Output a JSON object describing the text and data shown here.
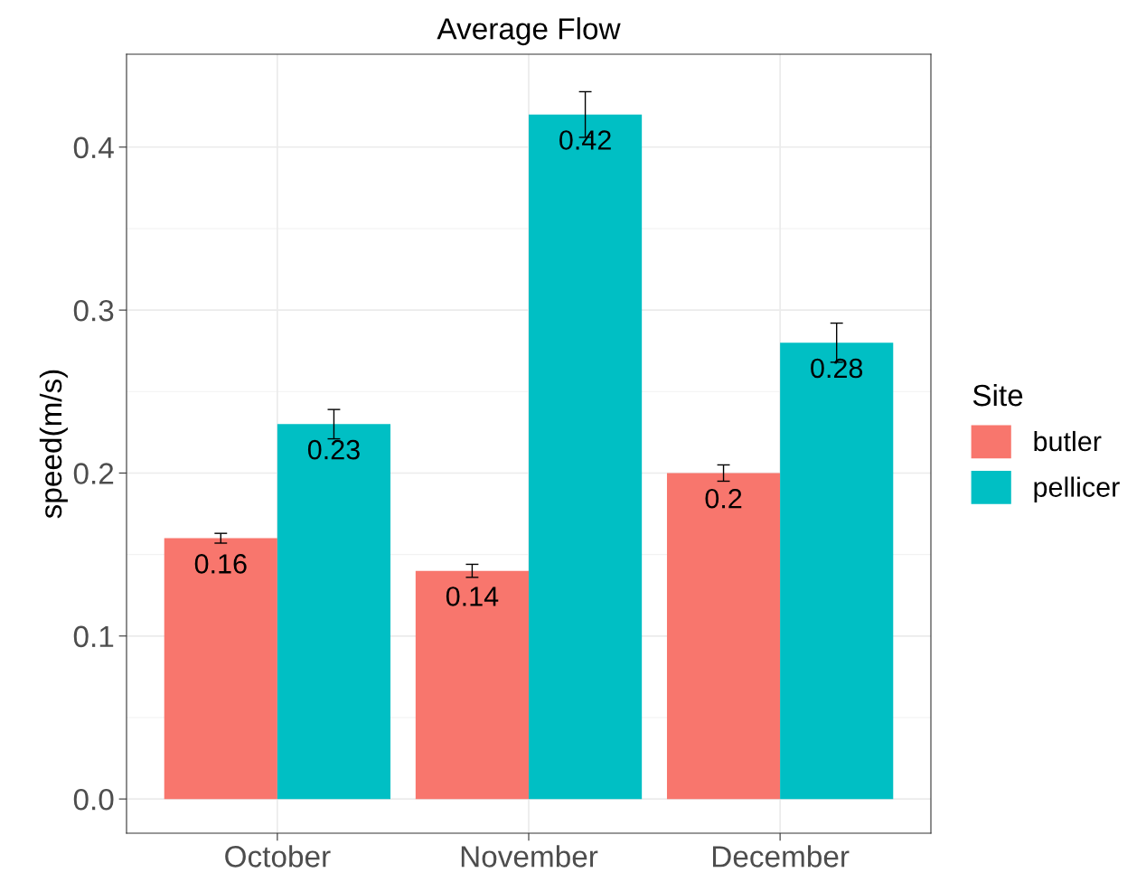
{
  "chart_data": {
    "type": "bar",
    "title": "Average Flow",
    "ylabel": "speed(m/s)",
    "legend_title": "Site",
    "categories": [
      "October",
      "November",
      "December"
    ],
    "series": [
      {
        "name": "butler",
        "color": "#f8766d",
        "values": [
          0.16,
          0.14,
          0.2
        ],
        "errors": [
          0.003,
          0.004,
          0.005
        ]
      },
      {
        "name": "pellicer",
        "color": "#00bfc4",
        "values": [
          0.23,
          0.42,
          0.28
        ],
        "errors": [
          0.009,
          0.014,
          0.012
        ]
      }
    ],
    "ylim": [
      -0.021,
      0.457
    ],
    "yticks": [
      {
        "value": 0,
        "label": "0.0"
      },
      0.1,
      0.2,
      0.3,
      0.4
    ],
    "data_labels": true,
    "grid": true,
    "legend": "right"
  }
}
